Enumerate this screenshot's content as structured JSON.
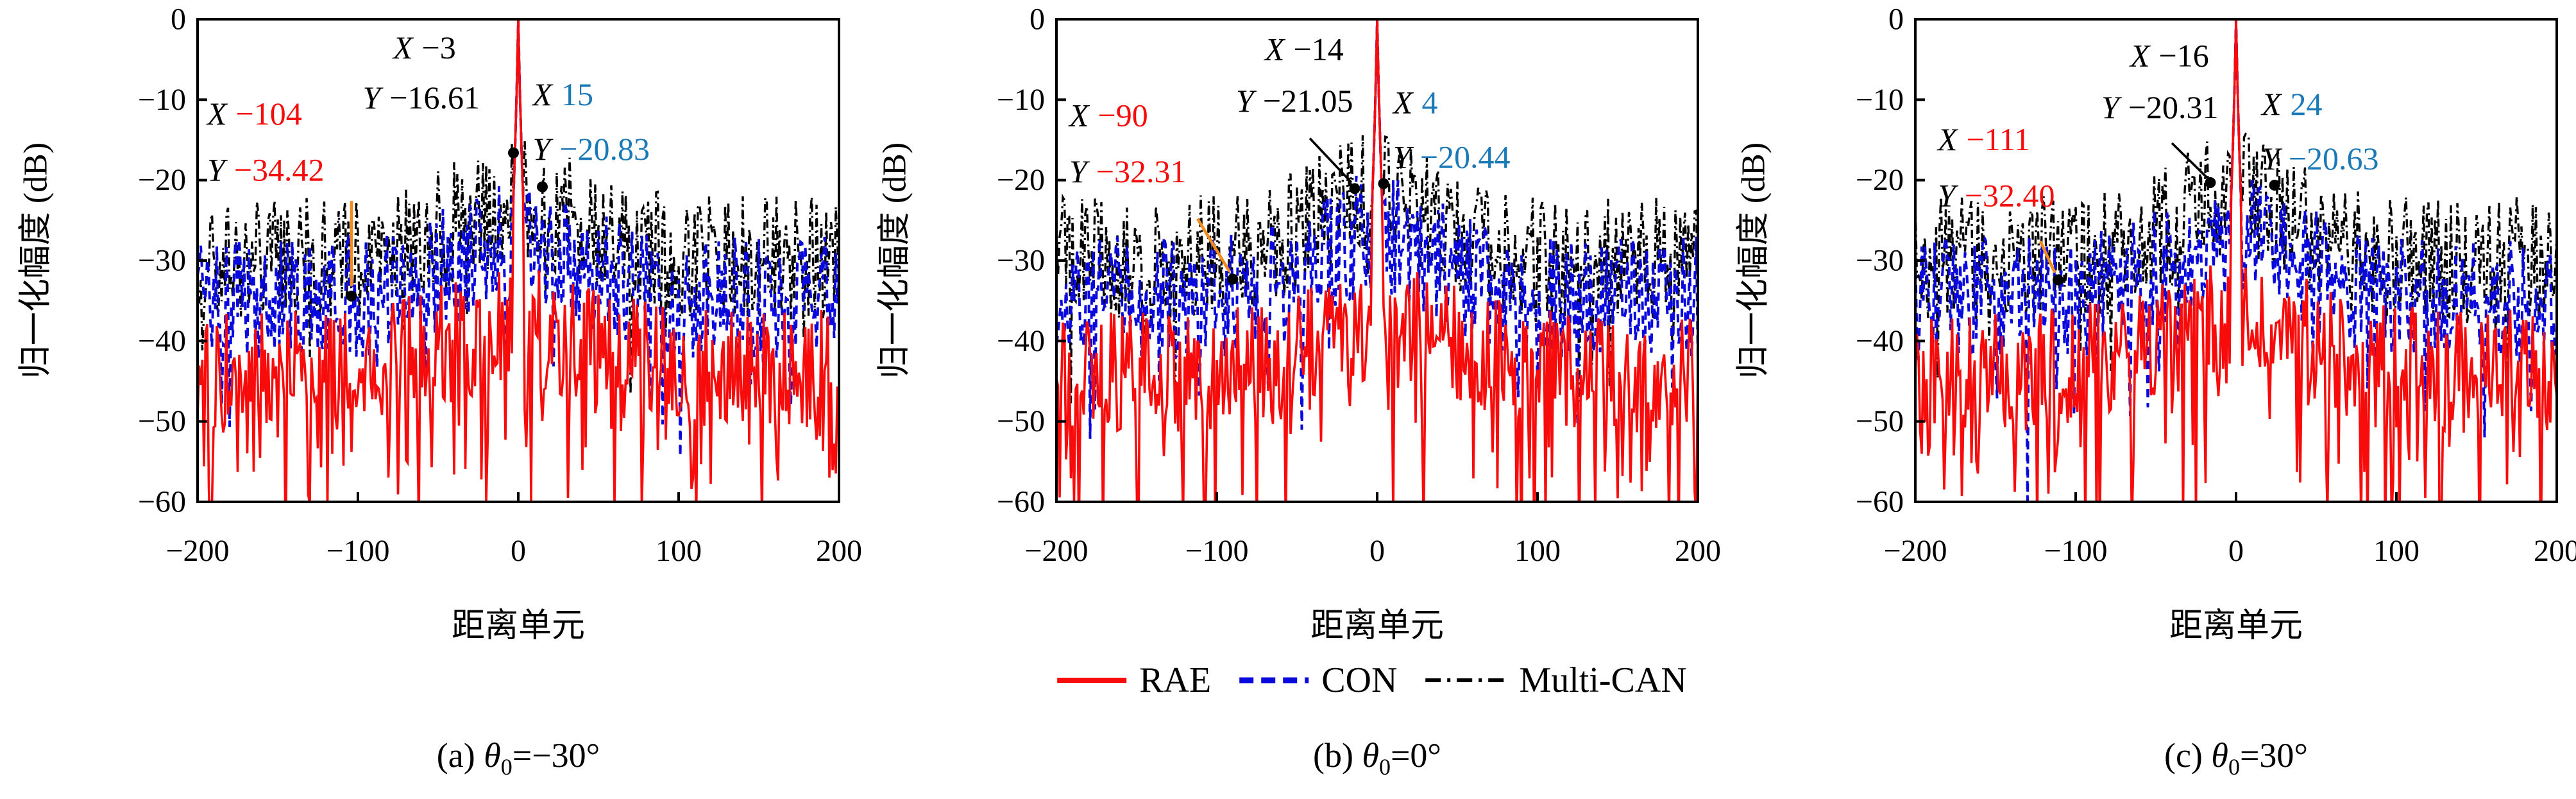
{
  "figure": {
    "background": "#ffffff"
  },
  "legend": {
    "position": "bottom-center",
    "items": [
      {
        "label": "RAE",
        "color": "#f80b0b",
        "style": "solid"
      },
      {
        "label": "CON",
        "color": "#0909dd",
        "style": "dashed"
      },
      {
        "label": "Multi-CAN",
        "color": "#000000",
        "style": "dashdot"
      }
    ]
  },
  "chart_data": [
    {
      "type": "line",
      "panel": "a",
      "caption": {
        "prefix": "(a) ",
        "theta": "θ",
        "sub": "0",
        "suffix": "=−30°"
      },
      "xlabel": "距离单元",
      "ylabel": "归一化幅度 (dB)",
      "xlim": [
        -200,
        200
      ],
      "ylim": [
        -60,
        0
      ],
      "grid": false,
      "xtick_labels": [
        "−200",
        "−100",
        "0",
        "100",
        "200"
      ],
      "xtick_values": [
        -200,
        -100,
        0,
        100,
        200
      ],
      "ytick_labels": [
        "0",
        "−10",
        "−20",
        "−30",
        "−40",
        "−50",
        "−60"
      ],
      "ytick_values": [
        0,
        -10,
        -20,
        -30,
        -40,
        -50,
        -60
      ],
      "series": [
        {
          "name": "Multi-CAN",
          "color": "#000000",
          "style": "dashdot",
          "width": 3.4,
          "noise": {
            "seed": 103,
            "base": -32,
            "up": 11,
            "deep_prob": 0.05,
            "deep_extra": 15,
            "center_boost": 7,
            "center_width": 40
          },
          "mainlobe_peak_db": 0
        },
        {
          "name": "CON",
          "color": "#0909dd",
          "style": "dashed",
          "width": 4.0,
          "noise": {
            "seed": 102,
            "base": -37,
            "up": 11,
            "deep_prob": 0.07,
            "deep_extra": 20,
            "center_boost": 7,
            "center_width": 40
          },
          "mainlobe_peak_db": 0
        },
        {
          "name": "RAE",
          "color": "#f80b0b",
          "style": "solid",
          "width": 3.6,
          "noise": {
            "seed": 101,
            "base": -46,
            "up": 11,
            "deep_prob": 0.22,
            "deep_extra": 20,
            "center_boost": 5,
            "center_width": 50
          },
          "mainlobe_peak_db": 0
        }
      ],
      "annotations": [
        {
          "id": "multican-near-sidelobe",
          "point": [
            -3,
            -16.61
          ],
          "value_color": "#000000",
          "dot": true,
          "leader": null,
          "lines": [
            {
              "label": "X",
              "value": "−3",
              "x": -78,
              "y": -2.0
            },
            {
              "label": "Y",
              "value": "−16.61",
              "x": -97,
              "y": -8.2
            }
          ]
        },
        {
          "id": "con-near-sidelobe",
          "point": [
            15,
            -20.83
          ],
          "value_color": "#1b79b7",
          "dot": true,
          "leader": null,
          "lines": [
            {
              "label": "X",
              "value": "15",
              "x": 9,
              "y": -7.8
            },
            {
              "label": "Y",
              "value": "−20.83",
              "x": 9,
              "y": -14.6
            }
          ]
        },
        {
          "id": "rae-peak-sidelobe",
          "point": [
            -104,
            -34.42
          ],
          "value_color": "#f80b0b",
          "dot": true,
          "leader": {
            "from": [
              -104,
              -22.6
            ],
            "to": [
              -104,
              -33.2
            ],
            "color": "#ef8b1f",
            "width": 4.6
          },
          "lines": [
            {
              "label": "X",
              "value": "−104",
              "x": -194,
              "y": -10.2
            },
            {
              "label": "Y",
              "value": "−34.42",
              "x": -194,
              "y": -17.2
            }
          ]
        }
      ]
    },
    {
      "type": "line",
      "panel": "b",
      "caption": {
        "prefix": "(b) ",
        "theta": "θ",
        "sub": "0",
        "suffix": "=0°"
      },
      "xlabel": "距离单元",
      "ylabel": "归一化幅度 (dB)",
      "xlim": [
        -200,
        200
      ],
      "ylim": [
        -60,
        0
      ],
      "grid": false,
      "xtick_labels": [
        "−200",
        "−100",
        "0",
        "100",
        "200"
      ],
      "xtick_values": [
        -200,
        -100,
        0,
        100,
        200
      ],
      "ytick_labels": [
        "0",
        "−10",
        "−20",
        "−30",
        "−40",
        "−50",
        "−60"
      ],
      "ytick_values": [
        0,
        -10,
        -20,
        -30,
        -40,
        -50,
        -60
      ],
      "series": [
        {
          "name": "Multi-CAN",
          "color": "#000000",
          "style": "dashdot",
          "width": 3.4,
          "noise": {
            "seed": 203,
            "base": -32,
            "up": 11,
            "deep_prob": 0.05,
            "deep_extra": 15,
            "center_boost": 8,
            "center_width": 38
          },
          "mainlobe_peak_db": 0
        },
        {
          "name": "CON",
          "color": "#0909dd",
          "style": "dashed",
          "width": 4.0,
          "noise": {
            "seed": 202,
            "base": -37,
            "up": 11,
            "deep_prob": 0.07,
            "deep_extra": 20,
            "center_boost": 8,
            "center_width": 38
          },
          "mainlobe_peak_db": 0
        },
        {
          "name": "RAE",
          "color": "#f80b0b",
          "style": "solid",
          "width": 3.6,
          "noise": {
            "seed": 201,
            "base": -46,
            "up": 11,
            "deep_prob": 0.22,
            "deep_extra": 20,
            "center_boost": 6,
            "center_width": 45
          },
          "mainlobe_peak_db": 0
        }
      ],
      "annotations": [
        {
          "id": "multican-near-sidelobe",
          "point": [
            -14,
            -21.05
          ],
          "value_color": "#000000",
          "dot": true,
          "leader": {
            "from": [
              -42,
              -14.8
            ],
            "to": [
              -16,
              -20.3
            ],
            "color": "#000000",
            "width": 3.6
          },
          "lines": [
            {
              "label": "X",
              "value": "−14",
              "x": -70,
              "y": -2.2
            },
            {
              "label": "Y",
              "value": "−21.05",
              "x": -88,
              "y": -8.6
            }
          ]
        },
        {
          "id": "con-near-sidelobe",
          "point": [
            4,
            -20.44
          ],
          "value_color": "#1b79b7",
          "dot": true,
          "leader": null,
          "lines": [
            {
              "label": "X",
              "value": "4",
              "x": 10,
              "y": -8.8
            },
            {
              "label": "Y",
              "value": "−20.44",
              "x": 10,
              "y": -15.6
            }
          ]
        },
        {
          "id": "rae-peak-sidelobe",
          "point": [
            -90,
            -32.31
          ],
          "value_color": "#f80b0b",
          "dot": true,
          "leader": {
            "from": [
              -112,
              -24.8
            ],
            "to": [
              -92,
              -31.4
            ],
            "color": "#ef8b1f",
            "width": 4.6
          },
          "lines": [
            {
              "label": "X",
              "value": "−90",
              "x": -192,
              "y": -10.4
            },
            {
              "label": "Y",
              "value": "−32.31",
              "x": -192,
              "y": -17.4
            }
          ]
        }
      ]
    },
    {
      "type": "line",
      "panel": "c",
      "caption": {
        "prefix": "(c) ",
        "theta": "θ",
        "sub": "0",
        "suffix": "=30°"
      },
      "xlabel": "距离单元",
      "ylabel": "归一化幅度 (dB)",
      "xlim": [
        -200,
        200
      ],
      "ylim": [
        -60,
        0
      ],
      "grid": false,
      "xtick_labels": [
        "−200",
        "−100",
        "0",
        "100",
        "200"
      ],
      "xtick_values": [
        -200,
        -100,
        0,
        100,
        200
      ],
      "ytick_labels": [
        "0",
        "−10",
        "−20",
        "−30",
        "−40",
        "−50",
        "−60"
      ],
      "ytick_values": [
        0,
        -10,
        -20,
        -30,
        -40,
        -50,
        -60
      ],
      "series": [
        {
          "name": "Multi-CAN",
          "color": "#000000",
          "style": "dashdot",
          "width": 3.4,
          "noise": {
            "seed": 303,
            "base": -32,
            "up": 11,
            "deep_prob": 0.05,
            "deep_extra": 15,
            "center_boost": 8,
            "center_width": 36
          },
          "mainlobe_peak_db": 0
        },
        {
          "name": "CON",
          "color": "#0909dd",
          "style": "dashed",
          "width": 4.0,
          "noise": {
            "seed": 302,
            "base": -37,
            "up": 11,
            "deep_prob": 0.07,
            "deep_extra": 20,
            "center_boost": 8,
            "center_width": 38
          },
          "mainlobe_peak_db": 0
        },
        {
          "name": "RAE",
          "color": "#f80b0b",
          "style": "solid",
          "width": 3.6,
          "noise": {
            "seed": 301,
            "base": -46,
            "up": 11,
            "deep_prob": 0.22,
            "deep_extra": 20,
            "center_boost": 6,
            "center_width": 45
          },
          "mainlobe_peak_db": 0
        }
      ],
      "annotations": [
        {
          "id": "multican-near-sidelobe",
          "point": [
            -16,
            -20.31
          ],
          "value_color": "#000000",
          "dot": true,
          "leader": {
            "from": [
              -40,
              -15.4
            ],
            "to": [
              -18,
              -19.7
            ],
            "color": "#000000",
            "width": 3.6
          },
          "lines": [
            {
              "label": "X",
              "value": "−16",
              "x": -66,
              "y": -3.0
            },
            {
              "label": "Y",
              "value": "−20.31",
              "x": -84,
              "y": -9.4
            }
          ]
        },
        {
          "id": "con-near-sidelobe",
          "point": [
            24,
            -20.63
          ],
          "value_color": "#1b79b7",
          "dot": true,
          "leader": null,
          "lines": [
            {
              "label": "X",
              "value": "24",
              "x": 16,
              "y": -9.0
            },
            {
              "label": "Y",
              "value": "−20.63",
              "x": 16,
              "y": -15.8
            }
          ]
        },
        {
          "id": "rae-peak-sidelobe",
          "point": [
            -111,
            -32.4
          ],
          "value_color": "#f80b0b",
          "dot": true,
          "leader": {
            "from": [
              -122,
              -27.6
            ],
            "to": [
              -113,
              -31.5
            ],
            "color": "#ef8b1f",
            "width": 4.6
          },
          "lines": [
            {
              "label": "X",
              "value": "−111",
              "x": -186,
              "y": -13.4
            },
            {
              "label": "Y",
              "value": "−32.40",
              "x": -186,
              "y": -20.4
            }
          ]
        }
      ]
    }
  ]
}
